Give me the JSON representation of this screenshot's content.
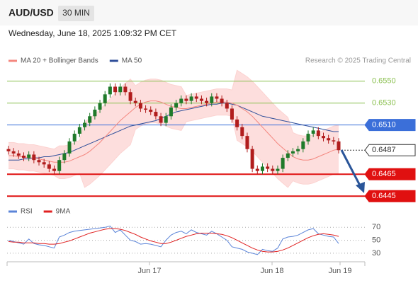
{
  "header": {
    "symbol": "AUD/USD",
    "timeframe": "30 MIN",
    "datetime": "Wednesday, June 18, 2025 1:09:32 PM CET"
  },
  "chart_data": [
    {
      "type": "candlestick",
      "credit": "Research © 2025 Trading Central",
      "up_color": "#1f7a2a",
      "down_color": "#b11d1d",
      "ylim": [
        0.644,
        0.6566
      ],
      "open": [
        0.6488,
        0.6486,
        0.6484,
        0.6482,
        0.648,
        0.6483,
        0.6478,
        0.6476,
        0.6474,
        0.647,
        0.6468,
        0.6478,
        0.6484,
        0.6495,
        0.6502,
        0.6508,
        0.6512,
        0.6518,
        0.6524,
        0.653,
        0.6538,
        0.6545,
        0.654,
        0.6545,
        0.654,
        0.6532,
        0.653,
        0.6525,
        0.6524,
        0.6522,
        0.6518,
        0.6512,
        0.6518,
        0.6526,
        0.653,
        0.6534,
        0.6532,
        0.6536,
        0.6534,
        0.6532,
        0.653,
        0.6536,
        0.6534,
        0.653,
        0.6525,
        0.6515,
        0.6508,
        0.65,
        0.6488,
        0.647,
        0.6468,
        0.6472,
        0.647,
        0.6468,
        0.647,
        0.648,
        0.6484,
        0.6486,
        0.6488,
        0.6495,
        0.6502,
        0.6505,
        0.65,
        0.6498,
        0.6496,
        0.6495
      ],
      "high": [
        0.6491,
        0.6489,
        0.6487,
        0.6485,
        0.6486,
        0.6486,
        0.6481,
        0.6479,
        0.6477,
        0.6473,
        0.6481,
        0.6487,
        0.6498,
        0.6505,
        0.6511,
        0.6515,
        0.6521,
        0.6527,
        0.6533,
        0.6541,
        0.6548,
        0.6548,
        0.6548,
        0.6548,
        0.6543,
        0.6535,
        0.6533,
        0.6528,
        0.6527,
        0.6525,
        0.6521,
        0.6521,
        0.6529,
        0.6533,
        0.6537,
        0.6537,
        0.6539,
        0.6539,
        0.6537,
        0.6535,
        0.6539,
        0.6539,
        0.6537,
        0.6533,
        0.6528,
        0.6518,
        0.6511,
        0.6503,
        0.6491,
        0.6473,
        0.6475,
        0.6475,
        0.6473,
        0.6473,
        0.6483,
        0.6487,
        0.6489,
        0.6491,
        0.6498,
        0.6505,
        0.6508,
        0.6508,
        0.6503,
        0.6501,
        0.6499,
        0.6498
      ],
      "low": [
        0.6483,
        0.6481,
        0.6479,
        0.6477,
        0.6477,
        0.6475,
        0.6473,
        0.6471,
        0.6467,
        0.6465,
        0.6465,
        0.6475,
        0.6481,
        0.6492,
        0.6499,
        0.6505,
        0.6509,
        0.6515,
        0.6521,
        0.6527,
        0.6535,
        0.6537,
        0.6537,
        0.6537,
        0.6529,
        0.6527,
        0.6522,
        0.6521,
        0.6519,
        0.6515,
        0.6509,
        0.6509,
        0.6515,
        0.6523,
        0.6527,
        0.6529,
        0.6529,
        0.6531,
        0.6529,
        0.6527,
        0.6527,
        0.6531,
        0.6527,
        0.6522,
        0.6512,
        0.6505,
        0.6497,
        0.6485,
        0.6467,
        0.6465,
        0.6465,
        0.6467,
        0.6465,
        0.6465,
        0.6467,
        0.6477,
        0.6481,
        0.6483,
        0.6485,
        0.6492,
        0.6499,
        0.6497,
        0.6495,
        0.6493,
        0.6492,
        0.6484
      ],
      "close": [
        0.6486,
        0.6484,
        0.6482,
        0.648,
        0.6483,
        0.6478,
        0.6476,
        0.6474,
        0.647,
        0.6468,
        0.6478,
        0.6484,
        0.6495,
        0.6502,
        0.6508,
        0.6512,
        0.6518,
        0.6524,
        0.653,
        0.6538,
        0.6545,
        0.654,
        0.6545,
        0.654,
        0.6532,
        0.653,
        0.6525,
        0.6524,
        0.6522,
        0.6518,
        0.6512,
        0.6518,
        0.6526,
        0.653,
        0.6534,
        0.6532,
        0.6536,
        0.6534,
        0.6532,
        0.653,
        0.6536,
        0.6534,
        0.653,
        0.6525,
        0.6515,
        0.6508,
        0.65,
        0.6488,
        0.647,
        0.6468,
        0.6472,
        0.647,
        0.6468,
        0.647,
        0.648,
        0.6484,
        0.6486,
        0.6488,
        0.6495,
        0.6502,
        0.6505,
        0.65,
        0.6498,
        0.6496,
        0.6495,
        0.6487
      ],
      "series": [
        {
          "name": "MA 20 + Bollinger Bands",
          "color": "#f4877f",
          "band_color": "#fcd3d1",
          "values": [
            0.6482,
            0.6482,
            0.6481,
            0.6481,
            0.648,
            0.648,
            0.6479,
            0.6478,
            0.6477,
            0.6476,
            0.6476,
            0.6476,
            0.6477,
            0.6479,
            0.6481,
            0.6483,
            0.6486,
            0.649,
            0.6494,
            0.6499,
            0.6504,
            0.6509,
            0.6514,
            0.6518,
            0.6522,
            0.6526,
            0.6529,
            0.6531,
            0.6532,
            0.6532,
            0.6531,
            0.6529,
            0.6527,
            0.6526,
            0.6525,
            0.6525,
            0.6526,
            0.6527,
            0.6528,
            0.6529,
            0.653,
            0.6531,
            0.6531,
            0.6531,
            0.653,
            0.6528,
            0.6525,
            0.6522,
            0.6518,
            0.6513,
            0.6508,
            0.6503,
            0.6498,
            0.6493,
            0.6489,
            0.6485,
            0.6481,
            0.6479,
            0.6478,
            0.6478,
            0.6479,
            0.6481,
            0.6483,
            0.6485,
            0.6487,
            0.6488
          ],
          "upper": [
            0.6494,
            0.6494,
            0.6493,
            0.6493,
            0.6492,
            0.6492,
            0.6491,
            0.649,
            0.6489,
            0.6488,
            0.6491,
            0.6491,
            0.6492,
            0.6494,
            0.6496,
            0.6513,
            0.6516,
            0.652,
            0.6524,
            0.6529,
            0.6534,
            0.6539,
            0.6544,
            0.6548,
            0.6552,
            0.6546,
            0.6549,
            0.6551,
            0.6552,
            0.6552,
            0.6551,
            0.6549,
            0.6547,
            0.6546,
            0.6545,
            0.6537,
            0.6538,
            0.6539,
            0.654,
            0.6541,
            0.6542,
            0.6543,
            0.6543,
            0.6543,
            0.6542,
            0.656,
            0.6557,
            0.6554,
            0.655,
            0.6545,
            0.654,
            0.6535,
            0.653,
            0.6525,
            0.6521,
            0.6517,
            0.6503,
            0.6501,
            0.65,
            0.65,
            0.6501,
            0.6503,
            0.6505,
            0.6507,
            0.6509,
            0.651
          ],
          "lower": [
            0.647,
            0.647,
            0.6469,
            0.6469,
            0.6468,
            0.6468,
            0.6467,
            0.6466,
            0.6465,
            0.6464,
            0.6461,
            0.6461,
            0.6462,
            0.6464,
            0.6466,
            0.6453,
            0.6456,
            0.646,
            0.6464,
            0.6469,
            0.6474,
            0.6479,
            0.6484,
            0.6488,
            0.6492,
            0.6506,
            0.6509,
            0.6511,
            0.6512,
            0.6512,
            0.6511,
            0.6509,
            0.6507,
            0.6506,
            0.6505,
            0.6513,
            0.6514,
            0.6515,
            0.6516,
            0.6517,
            0.6518,
            0.6519,
            0.6519,
            0.6519,
            0.6518,
            0.6496,
            0.6493,
            0.649,
            0.6486,
            0.6481,
            0.6476,
            0.6471,
            0.6466,
            0.6461,
            0.6457,
            0.6453,
            0.6459,
            0.6457,
            0.6456,
            0.6456,
            0.6457,
            0.6459,
            0.6461,
            0.6463,
            0.6465,
            0.6466
          ]
        },
        {
          "name": "MA 50",
          "color": "#2f4f9a",
          "values": [
            0.6478,
            0.6478,
            0.6478,
            0.6479,
            0.6479,
            0.648,
            0.648,
            0.6481,
            0.6481,
            0.6482,
            0.6483,
            0.6484,
            0.6485,
            0.6487,
            0.6489,
            0.6491,
            0.6493,
            0.6495,
            0.6497,
            0.6499,
            0.6501,
            0.6503,
            0.6505,
            0.6507,
            0.6509,
            0.651,
            0.6511,
            0.6512,
            0.6513,
            0.6514,
            0.6516,
            0.6518,
            0.652,
            0.6522,
            0.6523,
            0.6524,
            0.6525,
            0.6526,
            0.6527,
            0.6528,
            0.6529,
            0.6529,
            0.653,
            0.653,
            0.6529,
            0.6528,
            0.6526,
            0.6524,
            0.6522,
            0.652,
            0.6518,
            0.6517,
            0.6516,
            0.6515,
            0.6514,
            0.6513,
            0.6512,
            0.6511,
            0.651,
            0.6509,
            0.6508,
            0.6507,
            0.6506,
            0.6505,
            0.6504,
            0.6504
          ]
        }
      ],
      "levels": [
        {
          "value": 0.655,
          "label": "0.6550",
          "color": "#8cc152",
          "style": "text"
        },
        {
          "value": 0.653,
          "label": "0.6530",
          "color": "#8cc152",
          "style": "text"
        },
        {
          "value": 0.651,
          "label": "0.6510",
          "color": "#3b6fd9",
          "style": "box"
        },
        {
          "value": 0.6487,
          "label": "0.6487",
          "color": "#333333",
          "style": "current"
        },
        {
          "value": 0.6465,
          "label": "0.6465",
          "color": "#e01010",
          "style": "box"
        },
        {
          "value": 0.6445,
          "label": "0.6445",
          "color": "#e01010",
          "style": "box"
        }
      ]
    },
    {
      "type": "line",
      "ylim": [
        19,
        79
      ],
      "yticks": [
        30,
        50,
        70
      ],
      "grid": true,
      "x_labels": [
        "Jun 17",
        "Jun 18",
        "Jun 19"
      ],
      "series": [
        {
          "name": "RSI",
          "color": "#5b84d8",
          "values": [
            50,
            48,
            46,
            44,
            52,
            45,
            43,
            42,
            40,
            38,
            55,
            58,
            62,
            64,
            65,
            66,
            67,
            68,
            69,
            70,
            72,
            62,
            66,
            58,
            50,
            48,
            44,
            45,
            44,
            42,
            40,
            50,
            58,
            62,
            64,
            60,
            66,
            62,
            60,
            58,
            64,
            60,
            55,
            50,
            40,
            38,
            36,
            32,
            30,
            28,
            36,
            34,
            33,
            38,
            52,
            55,
            56,
            58,
            62,
            66,
            68,
            60,
            58,
            56,
            55,
            45
          ]
        },
        {
          "name": "9MA",
          "color": "#e02020",
          "values": [
            48,
            47,
            47,
            46,
            46,
            46,
            45,
            45,
            44,
            44,
            45,
            47,
            49,
            52,
            55,
            58,
            61,
            63,
            65,
            67,
            68,
            68,
            67,
            65,
            62,
            59,
            55,
            52,
            49,
            47,
            45,
            45,
            47,
            50,
            53,
            56,
            58,
            60,
            61,
            61,
            61,
            60,
            59,
            57,
            54,
            50,
            46,
            42,
            38,
            35,
            33,
            32,
            32,
            33,
            35,
            38,
            42,
            46,
            50,
            54,
            57,
            59,
            60,
            59,
            58,
            56
          ]
        }
      ]
    }
  ]
}
